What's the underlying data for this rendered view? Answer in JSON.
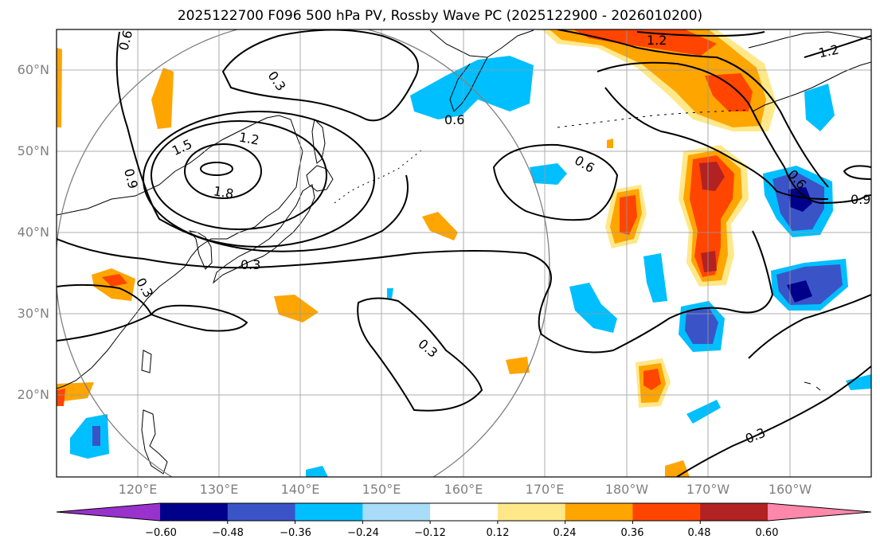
{
  "title": "2025122700 F096 500 hPa PV, Rossby Wave PC (2025122900 - 2026010200)",
  "lat_labels": [
    "60°N",
    "50°N",
    "40°N",
    "30°N",
    "20°N"
  ],
  "lon_labels": [
    "120°E",
    "130°E",
    "140°E",
    "150°E",
    "160°E",
    "170°E",
    "180°W",
    "170°W",
    "160°W"
  ],
  "contour_labels": [
    "0.6",
    "0.3",
    "1.2",
    "1.5",
    "1.8",
    "0.9",
    "0.3",
    "0.3",
    "0.6",
    "0.6",
    "0.3",
    "1.2",
    "1.2",
    "0.6",
    "0.9",
    "0.3"
  ],
  "colorbar": {
    "tick_labels": [
      "−0.60",
      "−0.48",
      "−0.36",
      "−0.24",
      "−0.12",
      "0.12",
      "0.24",
      "0.36",
      "0.48",
      "0.60"
    ],
    "colors": [
      "#9932cc",
      "#00008b",
      "#3a54c8",
      "#00bfff",
      "#a8dcf8",
      "#ffffff",
      "#ffe88a",
      "#ffa500",
      "#ff4500",
      "#b22222",
      "#ff88aa"
    ]
  }
}
